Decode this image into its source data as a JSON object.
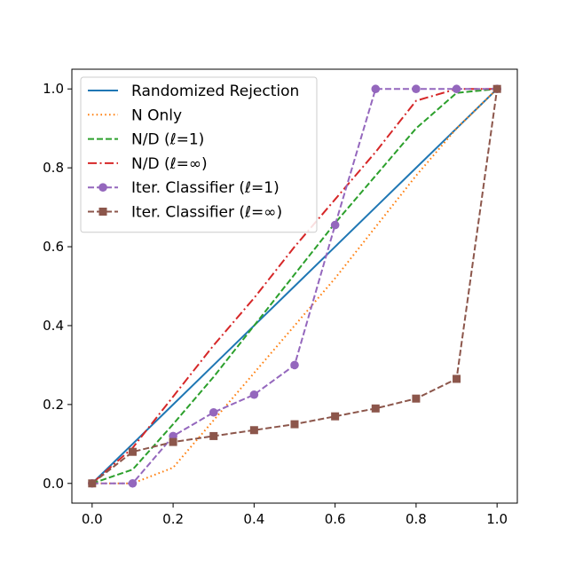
{
  "chart_data": {
    "type": "line",
    "title": "",
    "xlabel": "",
    "ylabel": "",
    "xlim": [
      -0.05,
      1.05
    ],
    "ylim": [
      -0.05,
      1.05
    ],
    "x_ticks": [
      0.0,
      0.2,
      0.4,
      0.6,
      0.8,
      1.0
    ],
    "y_ticks": [
      0.0,
      0.2,
      0.4,
      0.6,
      0.8,
      1.0
    ],
    "x_tick_labels": [
      "0.0",
      "0.2",
      "0.4",
      "0.6",
      "0.8",
      "1.0"
    ],
    "y_tick_labels": [
      "0.0",
      "0.2",
      "0.4",
      "0.6",
      "0.8",
      "1.0"
    ],
    "grid": false,
    "legend_position": "upper-left",
    "x": [
      0.0,
      0.1,
      0.2,
      0.3,
      0.4,
      0.5,
      0.6,
      0.7,
      0.8,
      0.9,
      1.0
    ],
    "series": [
      {
        "name": "Randomized Rejection",
        "color": "#1f77b4",
        "line_style": "solid",
        "marker": "none",
        "values": [
          0.0,
          0.1,
          0.2,
          0.3,
          0.4,
          0.5,
          0.6,
          0.7,
          0.8,
          0.9,
          1.0
        ]
      },
      {
        "name": "N Only",
        "color": "#ff7f0e",
        "line_style": "dotted",
        "marker": "none",
        "values": [
          0.0,
          0.0,
          0.04,
          0.16,
          0.28,
          0.4,
          0.52,
          0.65,
          0.78,
          0.9,
          1.0
        ]
      },
      {
        "name": "N/D (ℓ=1)",
        "color": "#2ca02c",
        "line_style": "dashed",
        "marker": "none",
        "values": [
          0.0,
          0.035,
          0.15,
          0.27,
          0.4,
          0.53,
          0.66,
          0.78,
          0.9,
          0.99,
          1.0
        ]
      },
      {
        "name": "N/D (ℓ=∞)",
        "color": "#d62728",
        "line_style": "dashdot",
        "marker": "none",
        "values": [
          0.0,
          0.09,
          0.22,
          0.35,
          0.47,
          0.6,
          0.72,
          0.84,
          0.97,
          1.0,
          1.0
        ]
      },
      {
        "name": "Iter. Classifier (ℓ=1)",
        "color": "#9467bd",
        "line_style": "dashed",
        "marker": "circle",
        "values": [
          0.0,
          0.0,
          0.12,
          0.18,
          0.225,
          0.3,
          0.655,
          1.0,
          1.0,
          1.0,
          1.0
        ]
      },
      {
        "name": "Iter. Classifier (ℓ=∞)",
        "color": "#8c564b",
        "line_style": "dashed",
        "marker": "square",
        "values": [
          0.0,
          0.08,
          0.105,
          0.12,
          0.135,
          0.15,
          0.17,
          0.19,
          0.215,
          0.265,
          1.0
        ]
      }
    ]
  }
}
